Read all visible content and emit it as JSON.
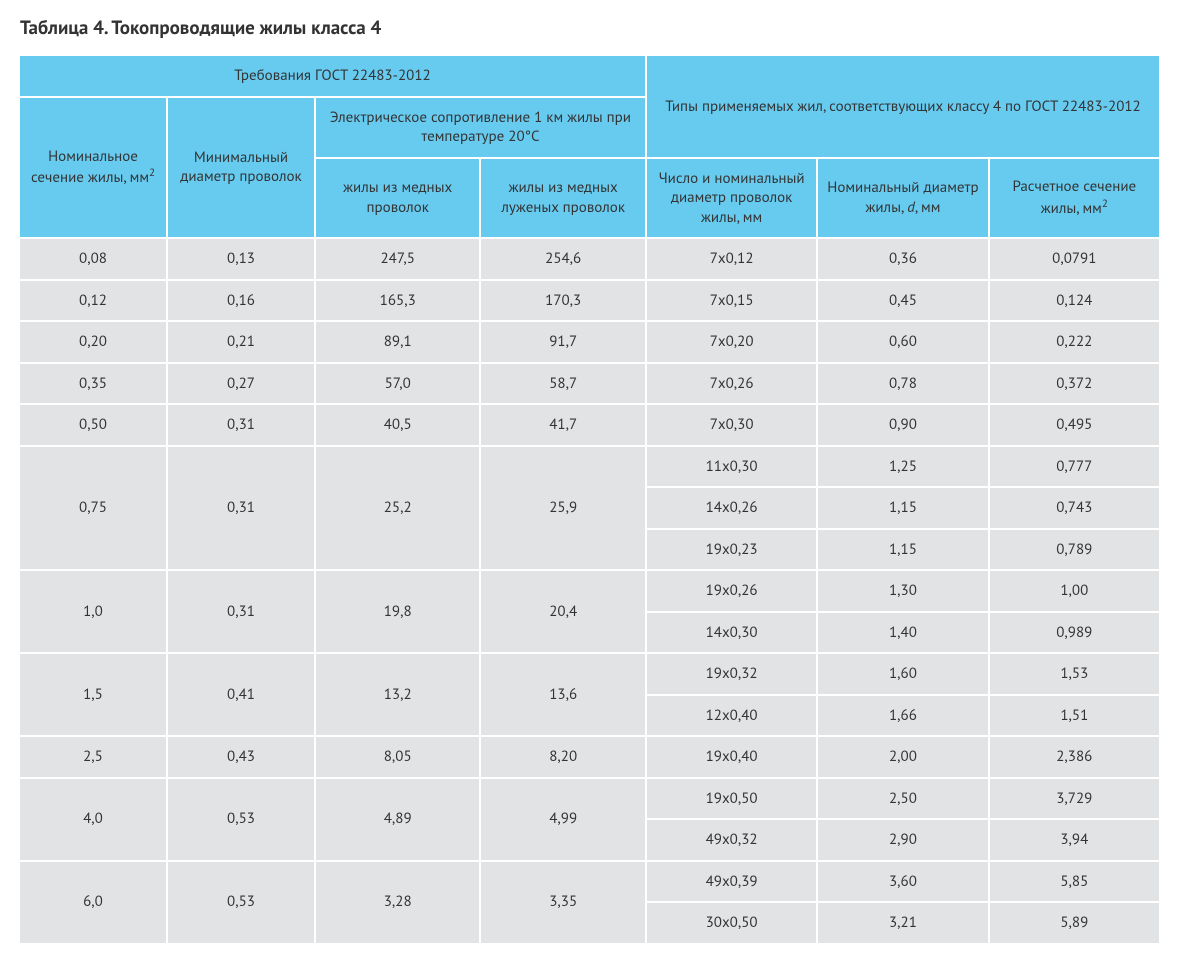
{
  "title": "Таблица 4. Токопроводящие жилы класса 4",
  "head": {
    "gost_req": "Требования ГОСТ 22483-2012",
    "types": "Типы применяемых жил, соответствующих классу 4 по ГОСТ 22483-2012",
    "resistance": "Электрическое сопротивление 1 км жилы при температуре 20°C",
    "nominal_section": "Номинальное сечение жилы, мм",
    "min_wire_dia": "Минимальный диаметр проволок",
    "copper": "жилы из медных проволок",
    "tinned": "жилы из медных луженых прово­лок",
    "count_dia": "Число и номи­нальный диа­метр проволок жилы, мм",
    "nom_dia": "Номинальный диаметр жилы, ",
    "nom_dia_var": "d",
    "nom_dia_unit": ", мм",
    "calc_section": "Расчетное сечение жилы, мм"
  },
  "style": {
    "header_bg": "#67cbf0",
    "cell_bg": "#e2e3e5",
    "border_gap_color": "#ffffff",
    "font_size_header": 15,
    "font_size_body": 15,
    "title_color": "#333333"
  },
  "groups": [
    {
      "sec": "0,08",
      "min": "0,13",
      "cu": "247,5",
      "sn": "254,6",
      "rows": [
        {
          "cd": "7х0,12",
          "d": "0,36",
          "cs": "0,0791"
        }
      ]
    },
    {
      "sec": "0,12",
      "min": "0,16",
      "cu": "165,3",
      "sn": "170,3",
      "rows": [
        {
          "cd": "7х0,15",
          "d": "0,45",
          "cs": "0,124"
        }
      ]
    },
    {
      "sec": "0,20",
      "min": "0,21",
      "cu": "89,1",
      "sn": "91,7",
      "rows": [
        {
          "cd": "7х0,20",
          "d": "0,60",
          "cs": "0,222"
        }
      ]
    },
    {
      "sec": "0,35",
      "min": "0,27",
      "cu": "57,0",
      "sn": "58,7",
      "rows": [
        {
          "cd": "7х0,26",
          "d": "0,78",
          "cs": "0,372"
        }
      ]
    },
    {
      "sec": "0,50",
      "min": "0,31",
      "cu": "40,5",
      "sn": "41,7",
      "rows": [
        {
          "cd": "7х0,30",
          "d": "0,90",
          "cs": "0,495"
        }
      ]
    },
    {
      "sec": "0,75",
      "min": "0,31",
      "cu": "25,2",
      "sn": "25,9",
      "rows": [
        {
          "cd": "11х0,30",
          "d": "1,25",
          "cs": "0,777"
        },
        {
          "cd": "14х0,26",
          "d": "1,15",
          "cs": "0,743"
        },
        {
          "cd": "19х0,23",
          "d": "1,15",
          "cs": "0,789"
        }
      ]
    },
    {
      "sec": "1,0",
      "min": "0,31",
      "cu": "19,8",
      "sn": "20,4",
      "rows": [
        {
          "cd": "19х0,26",
          "d": "1,30",
          "cs": "1,00"
        },
        {
          "cd": "14х0,30",
          "d": "1,40",
          "cs": "0,989"
        }
      ]
    },
    {
      "sec": "1,5",
      "min": "0,41",
      "cu": "13,2",
      "sn": "13,6",
      "rows": [
        {
          "cd": "19х0,32",
          "d": "1,60",
          "cs": "1,53"
        },
        {
          "cd": "12х0,40",
          "d": "1,66",
          "cs": "1,51"
        }
      ]
    },
    {
      "sec": "2,5",
      "min": "0,43",
      "cu": "8,05",
      "sn": "8,20",
      "rows": [
        {
          "cd": "19х0,40",
          "d": "2,00",
          "cs": "2,386"
        }
      ]
    },
    {
      "sec": "4,0",
      "min": "0,53",
      "cu": "4,89",
      "sn": "4,99",
      "rows": [
        {
          "cd": "19х0,50",
          "d": "2,50",
          "cs": "3,729"
        },
        {
          "cd": "49х0,32",
          "d": "2,90",
          "cs": "3,94"
        }
      ]
    },
    {
      "sec": "6,0",
      "min": "0,53",
      "cu": "3,28",
      "sn": "3,35",
      "rows": [
        {
          "cd": "49х0,39",
          "d": "3,60",
          "cs": "5,85"
        },
        {
          "cd": "30х0,50",
          "d": "3,21",
          "cs": "5,89"
        }
      ]
    }
  ]
}
